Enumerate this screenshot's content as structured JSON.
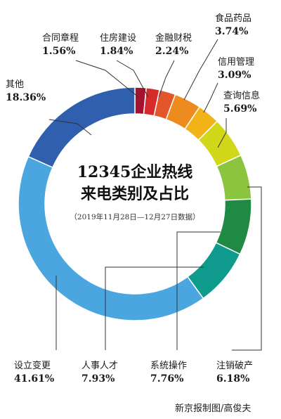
{
  "chart_data": {
    "type": "pie",
    "title": "12345企业热线",
    "title_line2": "来电类别及占比",
    "subtitle": "（2019年11月28日—12月27日数据）",
    "unit": "%",
    "slices": [
      {
        "label": "合同章程",
        "value": 1.56,
        "value_text": "1.56%",
        "color": "#a3122e"
      },
      {
        "label": "住房建设",
        "value": 1.84,
        "value_text": "1.84%",
        "color": "#d52b2b"
      },
      {
        "label": "金融财税",
        "value": 2.24,
        "value_text": "2.24%",
        "color": "#e3552a"
      },
      {
        "label": "食品药品",
        "value": 3.74,
        "value_text": "3.74%",
        "color": "#ee8b1f"
      },
      {
        "label": "信用管理",
        "value": 3.09,
        "value_text": "3.09%",
        "color": "#f2b318"
      },
      {
        "label": "查询信息",
        "value": 5.69,
        "value_text": "5.69%",
        "color": "#d2d71a"
      },
      {
        "label": "注销破产",
        "value": 6.18,
        "value_text": "6.18%",
        "color": "#8bc43f"
      },
      {
        "label": "系统操作",
        "value": 7.76,
        "value_text": "7.76%",
        "color": "#1e8a44"
      },
      {
        "label": "人事人才",
        "value": 7.93,
        "value_text": "7.93%",
        "color": "#0e9a8c"
      },
      {
        "label": "设立变更",
        "value": 41.61,
        "value_text": "41.61%",
        "color": "#4ba6df"
      },
      {
        "label": "其他",
        "value": 18.36,
        "value_text": "18.36%",
        "color": "#2f5fae"
      }
    ]
  },
  "credit": "新京报制图/高俊夫"
}
